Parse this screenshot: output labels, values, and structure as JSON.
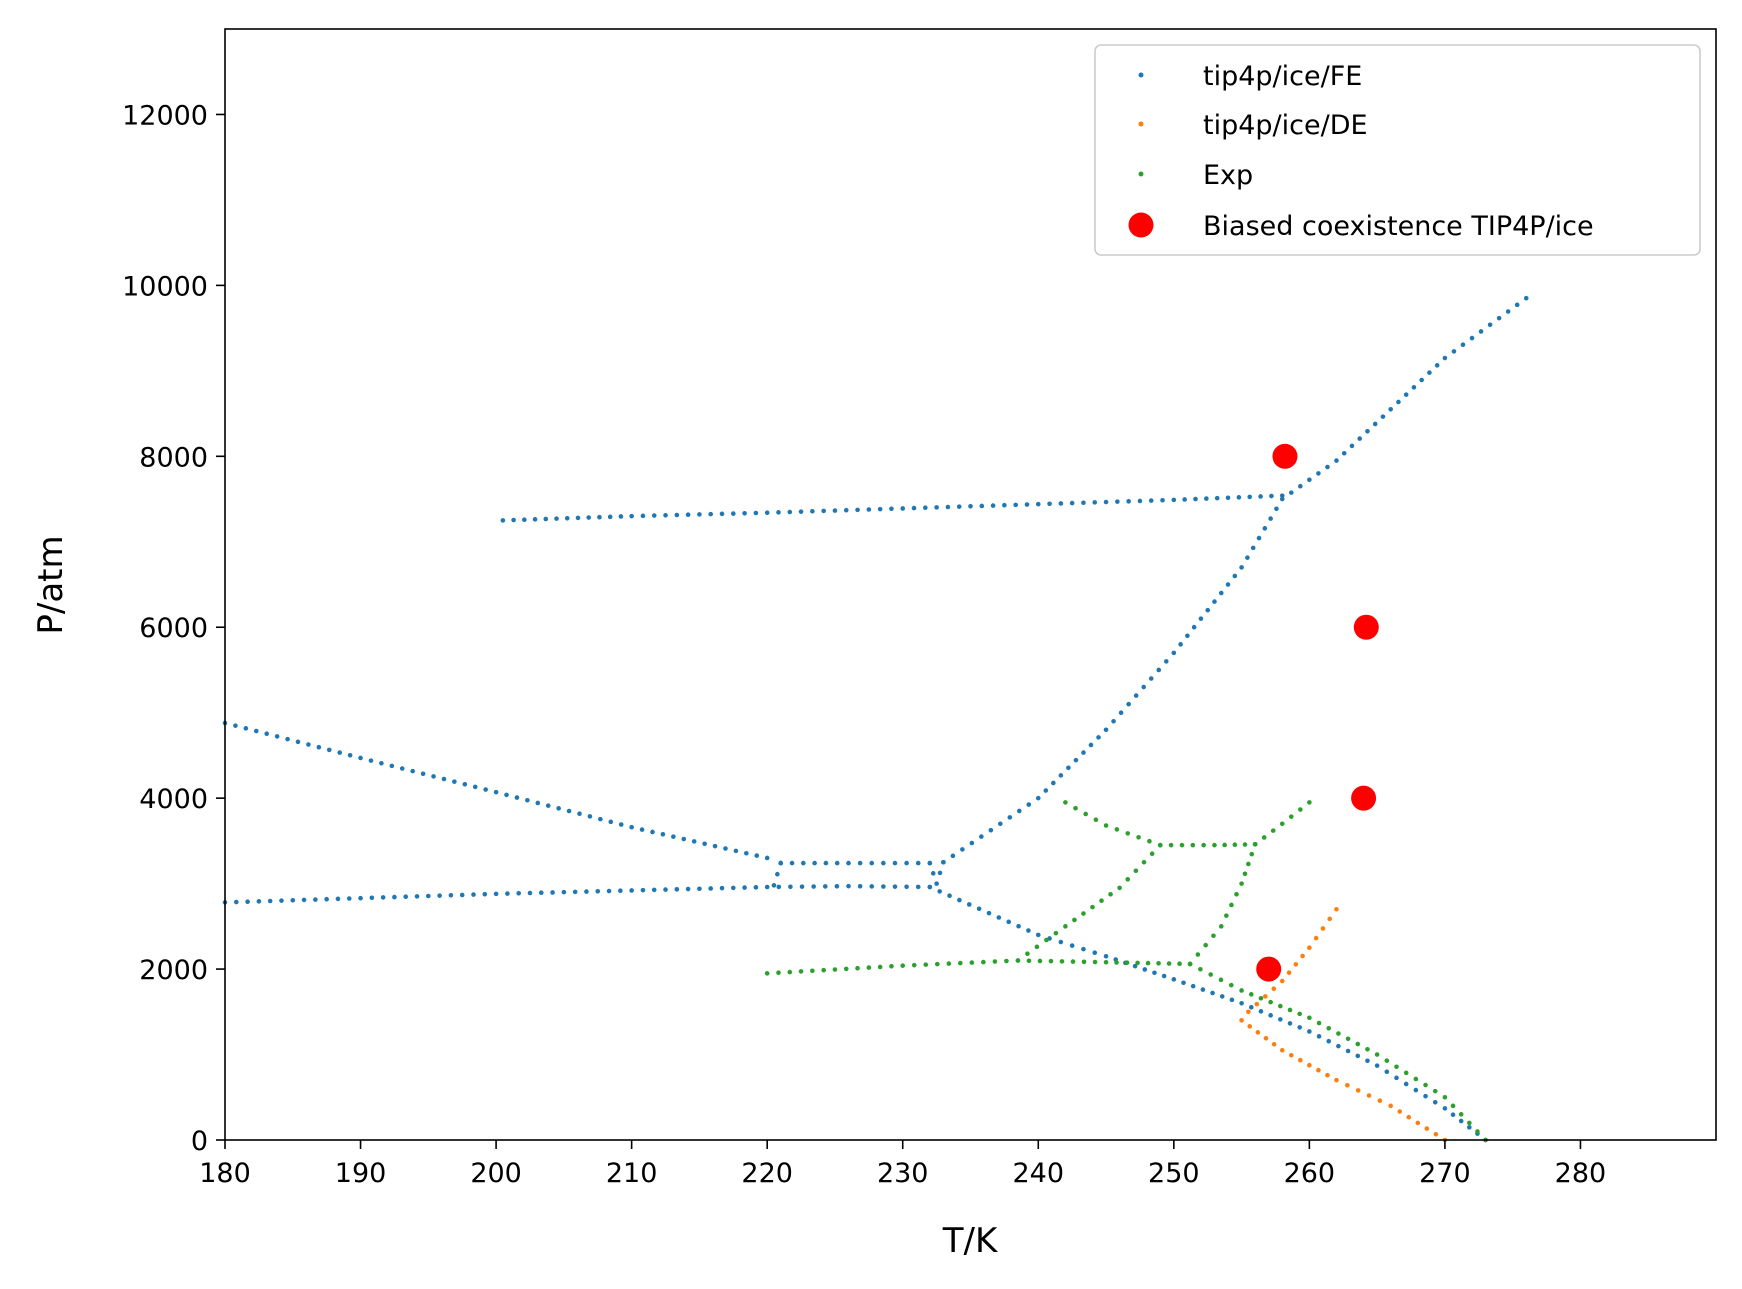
{
  "chart_data": {
    "type": "scatter",
    "title": "",
    "xlabel": "T/K",
    "ylabel": "P/atm",
    "xlim": [
      180,
      290
    ],
    "ylim": [
      0,
      13000
    ],
    "xticks": [
      180,
      190,
      200,
      210,
      220,
      230,
      240,
      250,
      260,
      270,
      280
    ],
    "yticks": [
      0,
      2000,
      4000,
      6000,
      8000,
      10000,
      12000
    ],
    "grid": false,
    "legend_position": "top-right",
    "series": [
      {
        "name": "tip4p/ice/FE",
        "color": "#1f77b4",
        "marker": "small-dot",
        "curves": [
          {
            "x": [
              200.5,
              210,
              220,
              230,
              240,
              250,
              258
            ],
            "y": [
              7250,
              7300,
              7340,
              7390,
              7440,
              7490,
              7540
            ]
          },
          {
            "x": [
              233,
              240,
              245,
              250,
              255,
              258,
              262,
              266,
              270,
              276
            ],
            "y": [
              3250,
              4000,
              4800,
              5700,
              6700,
              7500,
              7950,
              8550,
              9150,
              9850
            ]
          },
          {
            "x": [
              180,
              190,
              200,
              210,
              220,
              221
            ],
            "y": [
              4880,
              4470,
              4070,
              3660,
              3300,
              3240
            ]
          },
          {
            "x": [
              221,
              226,
              232
            ],
            "y": [
              3240,
              3240,
              3240
            ]
          },
          {
            "x": [
              221,
              220.5
            ],
            "y": [
              3240,
              2980
            ]
          },
          {
            "x": [
              232,
              232.5,
              233
            ],
            "y": [
              3240,
              3000,
              3250
            ]
          },
          {
            "x": [
              180,
              190,
              200,
              210,
              220,
              226,
              232
            ],
            "y": [
              2780,
              2830,
              2880,
              2920,
              2960,
              2970,
              2960
            ]
          },
          {
            "x": [
              232,
              240,
              245,
              250,
              255,
              260,
              265,
              270,
              273
            ],
            "y": [
              2960,
              2400,
              2150,
              1880,
              1600,
              1270,
              870,
              370,
              0
            ]
          }
        ]
      },
      {
        "name": "tip4p/ice/DE",
        "color": "#ff7f0e",
        "marker": "small-dot",
        "curves": [
          {
            "x": [
              255,
              258,
              262,
              266,
              270
            ],
            "y": [
              1400,
              1050,
              700,
              400,
              0
            ]
          },
          {
            "x": [
              255.5,
              258,
              260,
              262
            ],
            "y": [
              1500,
              1860,
              2250,
              2700
            ]
          }
        ]
      },
      {
        "name": "Exp",
        "color": "#2ca02c",
        "marker": "small-dot",
        "curves": [
          {
            "x": [
              220,
              230,
              238.5,
              245,
              251.2
            ],
            "y": [
              1950,
              2040,
              2100,
              2080,
              2060
            ]
          },
          {
            "x": [
              251.2,
              255,
              260,
              265,
              270,
              273
            ],
            "y": [
              2060,
              1750,
              1430,
              1000,
              500,
              0
            ]
          },
          {
            "x": [
              238.5,
              242,
              246,
              249
            ],
            "y": [
              2100,
              2500,
              2950,
              3450
            ]
          },
          {
            "x": [
              249,
              253,
              256
            ],
            "y": [
              3450,
              3450,
              3460
            ]
          },
          {
            "x": [
              251.2,
              253.5,
              255,
              256
            ],
            "y": [
              2060,
              2500,
              3000,
              3460
            ]
          },
          {
            "x": [
              242,
              245,
              249
            ],
            "y": [
              3950,
              3680,
              3450
            ]
          },
          {
            "x": [
              256,
              258,
              260
            ],
            "y": [
              3460,
              3700,
              3950
            ]
          }
        ]
      },
      {
        "name": "Biased coexistence TIP4P/ice",
        "color": "#ff0000",
        "marker": "large-dot",
        "x": [
          258.2,
          264.2,
          264.0,
          257.0
        ],
        "y": [
          8000,
          6000,
          4000,
          2000
        ]
      }
    ]
  }
}
